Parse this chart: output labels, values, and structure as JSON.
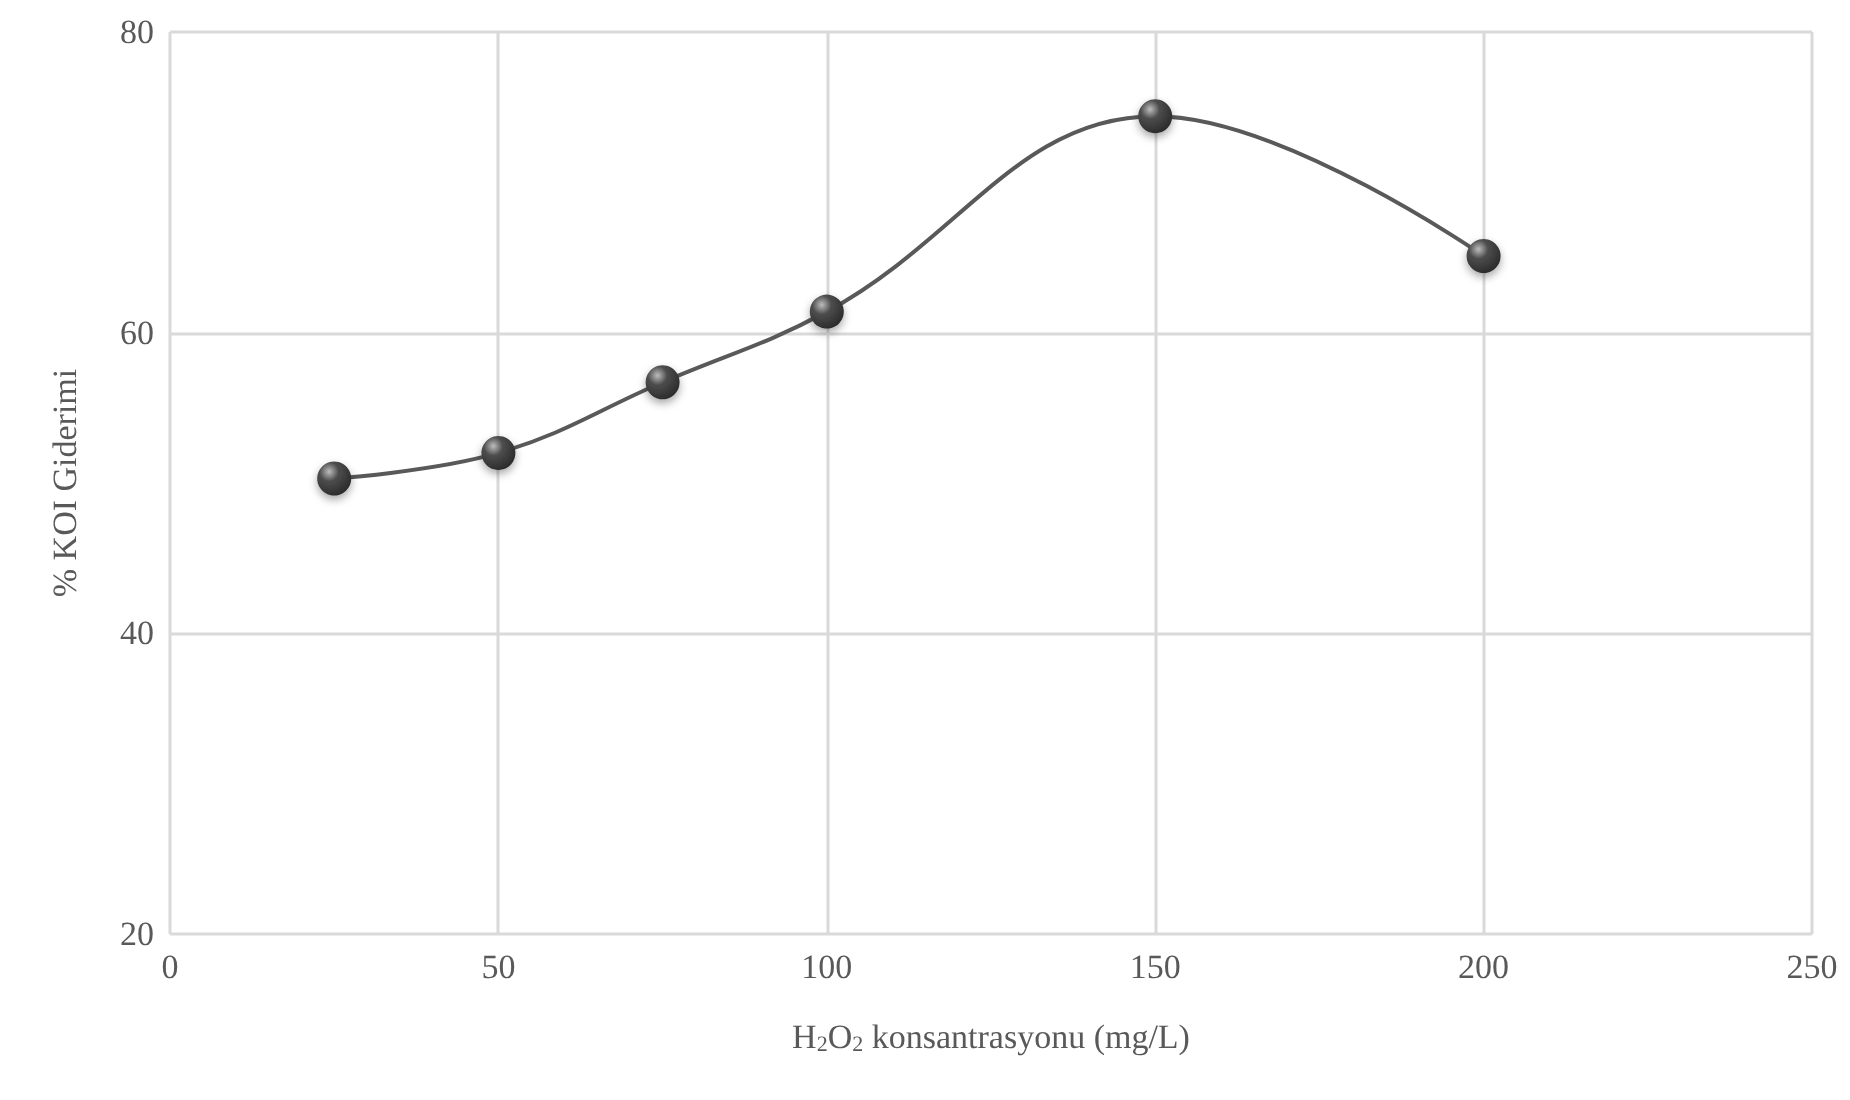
{
  "chart_data": {
    "type": "line",
    "xlabel": "H$_{2}$O$_{2}$ konsantrasyonu (mg/L)",
    "ylabel": "% KOI Giderimi",
    "x": [
      25,
      50,
      75,
      100,
      150,
      200
    ],
    "series": [
      {
        "color": "#4d4d4d",
        "values": [
          50.3,
          52.0,
          56.7,
          61.4,
          74.4,
          65.1
        ]
      }
    ],
    "xlim": [
      0,
      250
    ],
    "xticks": [
      0,
      50,
      100,
      150,
      200,
      250
    ],
    "ylim": [
      20,
      80
    ],
    "yticks": [
      20,
      40,
      60,
      80
    ],
    "grid": true,
    "marker": "circle",
    "line_style": "solid"
  }
}
